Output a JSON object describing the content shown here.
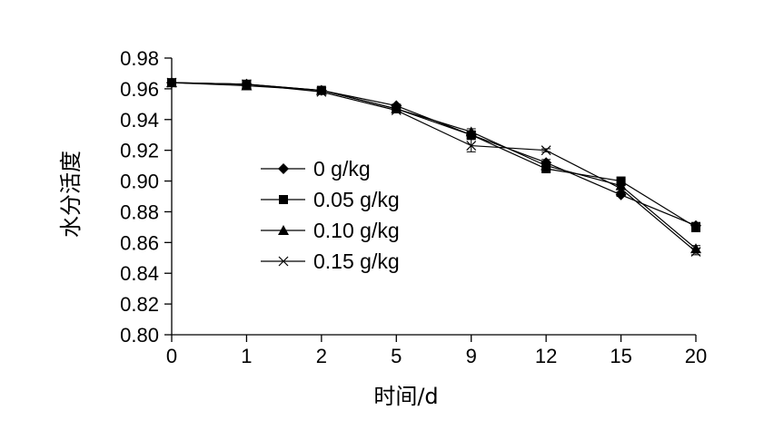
{
  "chart_data": {
    "type": "line",
    "title": "",
    "xlabel": "时间/d",
    "ylabel": "水分活度",
    "categories": [
      "0",
      "1",
      "2",
      "5",
      "9",
      "12",
      "15",
      "20"
    ],
    "ylim": [
      0.8,
      0.98
    ],
    "yticks": [
      "0.80",
      "0.82",
      "0.84",
      "0.86",
      "0.88",
      "0.90",
      "0.92",
      "0.94",
      "0.96",
      "0.98"
    ],
    "grid": false,
    "legend_position": "center-left",
    "series": [
      {
        "name": "0 g/kg",
        "marker": "diamond",
        "values": [
          0.964,
          0.963,
          0.959,
          0.949,
          0.93,
          0.912,
          0.891,
          0.871
        ],
        "errors": [
          0.001,
          0.001,
          0.001,
          0.001,
          0.002,
          0.002,
          0.001,
          0.002
        ]
      },
      {
        "name": "0.05 g/kg",
        "marker": "square",
        "values": [
          0.964,
          0.963,
          0.959,
          0.947,
          0.93,
          0.908,
          0.9,
          0.87
        ],
        "errors": [
          0.001,
          0.001,
          0.001,
          0.001,
          0.002,
          0.002,
          0.001,
          0.003
        ]
      },
      {
        "name": "0.10 g/kg",
        "marker": "triangle",
        "values": [
          0.964,
          0.962,
          0.959,
          0.947,
          0.932,
          0.91,
          0.897,
          0.856
        ],
        "errors": [
          0.001,
          0.001,
          0.001,
          0.001,
          0.002,
          0.002,
          0.002,
          0.002
        ]
      },
      {
        "name": "0.15 g/kg",
        "marker": "x",
        "values": [
          0.964,
          0.963,
          0.958,
          0.946,
          0.923,
          0.92,
          0.895,
          0.854
        ],
        "errors": [
          0.001,
          0.001,
          0.001,
          0.001,
          0.004,
          0.001,
          0.002,
          0.002
        ]
      }
    ]
  }
}
